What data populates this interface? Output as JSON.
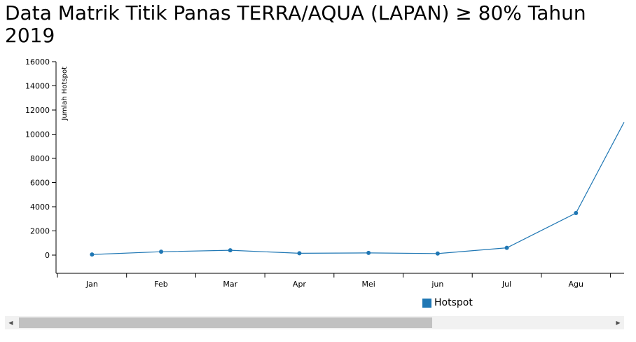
{
  "title": "Data Matrik Titik Panas TERRA/AQUA (LAPAN) ≥ 80% Tahun 2019",
  "colors": {
    "series": "#1f77b4",
    "axis": "#000000"
  },
  "chart_data": {
    "type": "line",
    "title": "Data Matrik Titik Panas TERRA/AQUA (LAPAN) ≥ 80% Tahun 2019",
    "ylabel": "Jumlah Hotspot",
    "xlabel": "",
    "categories": [
      "Jan",
      "Feb",
      "Mar",
      "Apr",
      "Mei",
      "jun",
      "Jul",
      "Agu"
    ],
    "y_ticks": [
      0,
      2000,
      4000,
      6000,
      8000,
      10000,
      12000,
      14000,
      16000
    ],
    "ylim": [
      -1500,
      16000
    ],
    "grid": false,
    "legend": "bottom-right",
    "series": [
      {
        "name": "Hotspot",
        "values": [
          50,
          280,
          400,
          150,
          180,
          130,
          600,
          3480
        ],
        "trailing_value": 11000
      }
    ]
  },
  "scrollbar": {
    "left_icon": "scroll-left-arrow-icon",
    "right_icon": "scroll-right-arrow-icon",
    "left_glyph": "◀",
    "right_glyph": "▶"
  }
}
